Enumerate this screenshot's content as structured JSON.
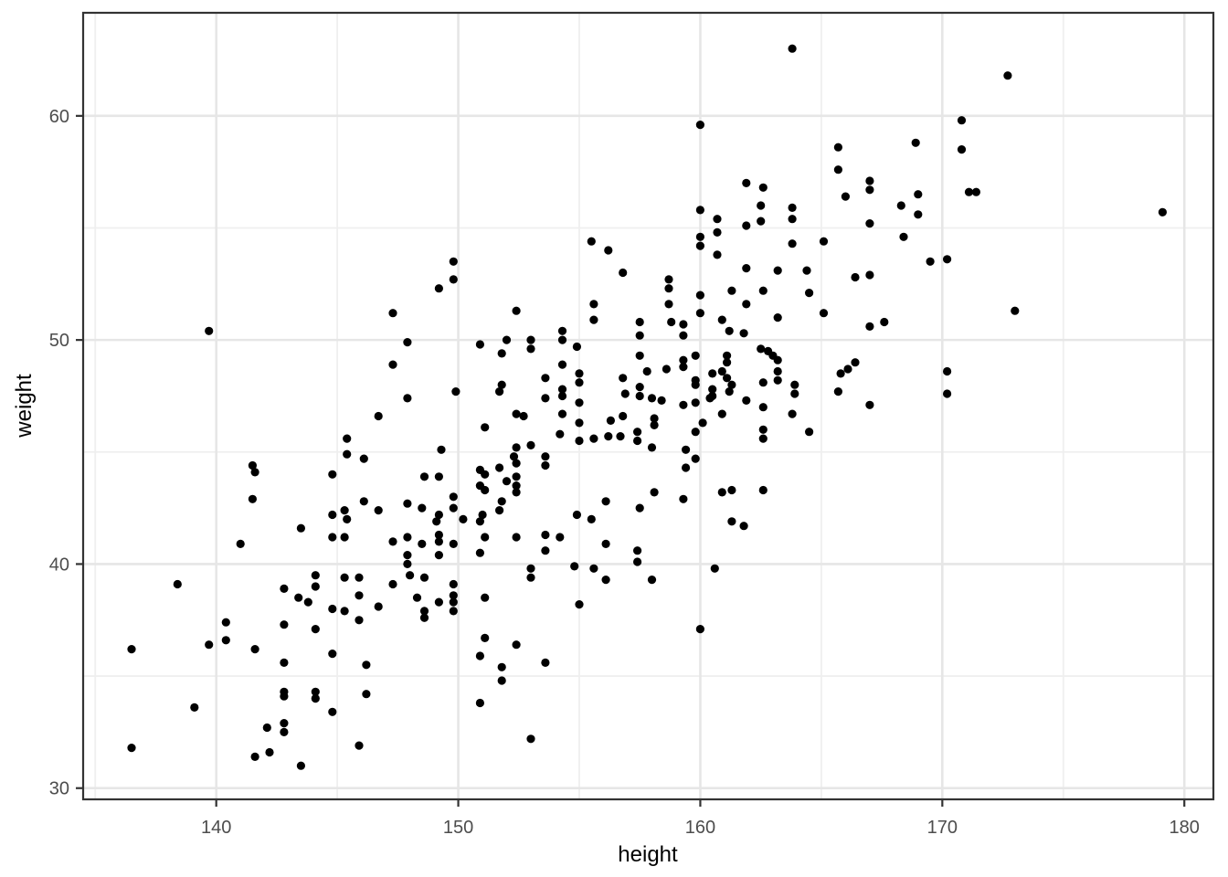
{
  "figure": {
    "xlabel": "height",
    "ylabel": "weight"
  },
  "chart_data": {
    "type": "scatter",
    "title": "",
    "xlabel": "height",
    "ylabel": "weight",
    "xlim": [
      134.5,
      181.2
    ],
    "ylim": [
      29.5,
      64.6
    ],
    "x_major_ticks": [
      140,
      150,
      160,
      170,
      180
    ],
    "x_minor_ticks": [
      135,
      145,
      155,
      165,
      175
    ],
    "y_major_ticks": [
      30,
      40,
      50,
      60
    ],
    "y_minor_ticks": [
      35,
      45,
      55
    ],
    "grid": true,
    "legend_position": "none",
    "style": {
      "point_color": "#000000",
      "point_radius": 4.6,
      "grid_major_color": "#E6E6E6",
      "grid_minor_color": "#EFEFEF",
      "panel_border_color": "#333333",
      "tick_mark_color": "#333333",
      "tick_label_color": "#4D4D4D",
      "axis_title_color": "#000000",
      "panel_background": "#FFFFFF"
    },
    "points": [
      [
        139.7,
        50.4
      ],
      [
        141.5,
        44.4
      ],
      [
        141.6,
        44.1
      ],
      [
        141.5,
        42.9
      ],
      [
        141.0,
        40.9
      ],
      [
        138.4,
        39.1
      ],
      [
        145.4,
        45.6
      ],
      [
        145.4,
        44.9
      ],
      [
        146.1,
        44.7
      ],
      [
        144.8,
        44.0
      ],
      [
        146.1,
        42.8
      ],
      [
        144.8,
        42.2
      ],
      [
        145.3,
        42.4
      ],
      [
        145.4,
        42.0
      ],
      [
        143.5,
        41.6
      ],
      [
        144.8,
        41.2
      ],
      [
        145.3,
        41.2
      ],
      [
        149.8,
        53.5
      ],
      [
        155.5,
        54.4
      ],
      [
        156.2,
        54.0
      ],
      [
        156.8,
        53.0
      ],
      [
        163.8,
        63.0
      ],
      [
        160.0,
        59.6
      ],
      [
        165.7,
        58.6
      ],
      [
        168.9,
        58.8
      ],
      [
        165.7,
        57.6
      ],
      [
        161.9,
        57.0
      ],
      [
        162.6,
        56.8
      ],
      [
        167.0,
        57.1
      ],
      [
        167.0,
        56.7
      ],
      [
        166.0,
        56.4
      ],
      [
        169.0,
        56.5
      ],
      [
        162.5,
        56.0
      ],
      [
        163.8,
        55.9
      ],
      [
        168.3,
        56.0
      ],
      [
        169.0,
        55.6
      ],
      [
        160.0,
        55.8
      ],
      [
        160.7,
        55.4
      ],
      [
        163.8,
        55.4
      ],
      [
        162.5,
        55.3
      ],
      [
        161.9,
        55.1
      ],
      [
        167.0,
        55.2
      ],
      [
        160.0,
        54.6
      ],
      [
        160.0,
        54.2
      ],
      [
        160.7,
        54.8
      ],
      [
        160.7,
        53.8
      ],
      [
        165.1,
        54.4
      ],
      [
        168.4,
        54.6
      ],
      [
        163.8,
        54.3
      ],
      [
        161.9,
        53.2
      ],
      [
        163.2,
        53.1
      ],
      [
        164.4,
        53.1
      ],
      [
        169.5,
        53.5
      ],
      [
        166.4,
        52.8
      ],
      [
        167.0,
        52.9
      ],
      [
        172.7,
        61.8
      ],
      [
        170.8,
        59.8
      ],
      [
        170.8,
        58.5
      ],
      [
        171.1,
        56.6
      ],
      [
        171.4,
        56.6
      ],
      [
        179.1,
        55.7
      ],
      [
        170.2,
        53.6
      ],
      [
        149.8,
        52.7
      ],
      [
        149.2,
        52.3
      ],
      [
        147.3,
        51.2
      ],
      [
        152.4,
        51.3
      ],
      [
        155.6,
        51.6
      ],
      [
        155.6,
        50.9
      ],
      [
        157.5,
        50.8
      ],
      [
        157.5,
        50.2
      ],
      [
        147.9,
        49.9
      ],
      [
        150.9,
        49.8
      ],
      [
        152.0,
        50.0
      ],
      [
        153.0,
        50.0
      ],
      [
        153.0,
        49.6
      ],
      [
        154.3,
        50.4
      ],
      [
        154.3,
        50.0
      ],
      [
        151.8,
        49.4
      ],
      [
        154.9,
        49.7
      ],
      [
        147.3,
        48.9
      ],
      [
        157.5,
        49.3
      ],
      [
        154.3,
        48.9
      ],
      [
        153.6,
        48.3
      ],
      [
        155.0,
        48.5
      ],
      [
        155.0,
        48.1
      ],
      [
        156.8,
        48.3
      ],
      [
        151.8,
        48.0
      ],
      [
        151.7,
        47.7
      ],
      [
        149.9,
        47.7
      ],
      [
        147.9,
        47.4
      ],
      [
        153.6,
        47.4
      ],
      [
        154.3,
        47.8
      ],
      [
        154.3,
        47.5
      ],
      [
        155.0,
        47.2
      ],
      [
        156.9,
        47.6
      ],
      [
        157.5,
        47.9
      ],
      [
        157.5,
        47.5
      ],
      [
        157.8,
        48.6
      ],
      [
        158.0,
        47.4
      ],
      [
        146.7,
        46.6
      ],
      [
        152.4,
        46.7
      ],
      [
        152.7,
        46.6
      ],
      [
        154.3,
        46.7
      ],
      [
        156.3,
        46.4
      ],
      [
        156.8,
        46.6
      ],
      [
        151.1,
        46.1
      ],
      [
        155.0,
        46.3
      ],
      [
        154.2,
        45.8
      ],
      [
        155.0,
        45.5
      ],
      [
        155.6,
        45.6
      ],
      [
        156.2,
        45.7
      ],
      [
        156.7,
        45.7
      ],
      [
        157.4,
        45.9
      ],
      [
        157.4,
        45.5
      ],
      [
        149.3,
        45.1
      ],
      [
        152.4,
        45.2
      ],
      [
        153.0,
        45.3
      ],
      [
        152.3,
        44.8
      ],
      [
        152.4,
        44.5
      ],
      [
        153.6,
        44.8
      ],
      [
        153.6,
        44.4
      ],
      [
        148.6,
        43.9
      ],
      [
        149.2,
        43.9
      ],
      [
        150.9,
        44.2
      ],
      [
        150.9,
        43.5
      ],
      [
        151.1,
        44.0
      ],
      [
        151.1,
        43.3
      ],
      [
        151.7,
        44.3
      ],
      [
        152.0,
        43.7
      ],
      [
        152.4,
        43.9
      ],
      [
        152.4,
        43.5
      ],
      [
        152.4,
        43.2
      ],
      [
        151.8,
        42.8
      ],
      [
        151.7,
        42.4
      ],
      [
        149.8,
        43.0
      ],
      [
        149.8,
        42.5
      ],
      [
        150.2,
        42.0
      ],
      [
        150.9,
        41.9
      ],
      [
        149.2,
        42.2
      ],
      [
        149.1,
        41.9
      ],
      [
        147.9,
        42.7
      ],
      [
        146.7,
        42.4
      ],
      [
        148.5,
        42.5
      ],
      [
        151.0,
        42.2
      ],
      [
        154.9,
        42.2
      ],
      [
        155.5,
        42.0
      ],
      [
        156.1,
        42.8
      ],
      [
        157.5,
        42.5
      ],
      [
        147.9,
        41.2
      ],
      [
        149.2,
        41.3
      ],
      [
        149.2,
        41.0
      ],
      [
        147.3,
        41.0
      ],
      [
        151.1,
        41.2
      ],
      [
        152.4,
        41.2
      ],
      [
        153.6,
        41.3
      ],
      [
        154.2,
        41.2
      ],
      [
        148.5,
        40.9
      ],
      [
        158.7,
        52.7
      ],
      [
        158.7,
        52.3
      ],
      [
        161.3,
        52.2
      ],
      [
        162.6,
        52.2
      ],
      [
        164.5,
        52.1
      ],
      [
        160.0,
        52.0
      ],
      [
        158.7,
        51.6
      ],
      [
        161.9,
        51.6
      ],
      [
        160.0,
        51.2
      ],
      [
        165.1,
        51.2
      ],
      [
        163.2,
        51.0
      ],
      [
        158.8,
        50.8
      ],
      [
        159.3,
        50.7
      ],
      [
        160.9,
        50.9
      ],
      [
        167.0,
        50.6
      ],
      [
        167.6,
        50.8
      ],
      [
        161.2,
        50.4
      ],
      [
        159.3,
        50.2
      ],
      [
        161.8,
        50.3
      ],
      [
        162.5,
        49.6
      ],
      [
        162.8,
        49.5
      ],
      [
        161.1,
        49.3
      ],
      [
        161.1,
        49.0
      ],
      [
        163.0,
        49.3
      ],
      [
        163.2,
        49.1
      ],
      [
        159.3,
        49.1
      ],
      [
        159.3,
        48.8
      ],
      [
        159.8,
        49.3
      ],
      [
        158.6,
        48.7
      ],
      [
        163.2,
        48.6
      ],
      [
        163.2,
        48.2
      ],
      [
        160.5,
        48.5
      ],
      [
        160.9,
        48.6
      ],
      [
        161.1,
        48.3
      ],
      [
        161.3,
        48.0
      ],
      [
        159.8,
        48.2
      ],
      [
        159.8,
        48.0
      ],
      [
        160.5,
        47.8
      ],
      [
        160.5,
        47.5
      ],
      [
        161.2,
        47.7
      ],
      [
        162.6,
        48.1
      ],
      [
        163.9,
        48.0
      ],
      [
        163.9,
        47.6
      ],
      [
        165.8,
        48.5
      ],
      [
        166.1,
        48.7
      ],
      [
        166.4,
        49.0
      ],
      [
        165.7,
        47.7
      ],
      [
        158.4,
        47.3
      ],
      [
        159.3,
        47.1
      ],
      [
        159.8,
        47.2
      ],
      [
        160.4,
        47.4
      ],
      [
        161.9,
        47.3
      ],
      [
        162.6,
        47.0
      ],
      [
        167.0,
        47.1
      ],
      [
        160.9,
        46.7
      ],
      [
        158.1,
        46.5
      ],
      [
        158.1,
        46.2
      ],
      [
        160.1,
        46.3
      ],
      [
        163.8,
        46.7
      ],
      [
        159.8,
        45.9
      ],
      [
        162.6,
        46.0
      ],
      [
        162.6,
        45.6
      ],
      [
        164.5,
        45.9
      ],
      [
        158.0,
        45.2
      ],
      [
        159.4,
        45.1
      ],
      [
        159.4,
        44.3
      ],
      [
        159.8,
        44.7
      ],
      [
        158.1,
        43.2
      ],
      [
        159.3,
        42.9
      ],
      [
        160.9,
        43.2
      ],
      [
        161.3,
        43.3
      ],
      [
        162.6,
        43.3
      ],
      [
        161.3,
        41.9
      ],
      [
        161.8,
        41.7
      ],
      [
        173.0,
        51.3
      ],
      [
        170.2,
        48.6
      ],
      [
        170.2,
        47.6
      ],
      [
        136.5,
        36.2
      ],
      [
        136.5,
        31.8
      ],
      [
        139.1,
        33.6
      ],
      [
        140.4,
        37.4
      ],
      [
        139.7,
        36.4
      ],
      [
        140.4,
        36.6
      ],
      [
        141.6,
        36.2
      ],
      [
        142.8,
        38.9
      ],
      [
        143.4,
        38.5
      ],
      [
        143.8,
        38.3
      ],
      [
        144.1,
        39.5
      ],
      [
        144.1,
        39.0
      ],
      [
        144.8,
        38.0
      ],
      [
        145.3,
        39.4
      ],
      [
        145.9,
        39.4
      ],
      [
        145.3,
        37.9
      ],
      [
        145.9,
        38.6
      ],
      [
        145.9,
        37.5
      ],
      [
        142.8,
        37.3
      ],
      [
        144.1,
        37.1
      ],
      [
        144.8,
        36.0
      ],
      [
        142.8,
        35.6
      ],
      [
        146.2,
        35.5
      ],
      [
        142.8,
        34.3
      ],
      [
        142.8,
        34.1
      ],
      [
        144.1,
        34.3
      ],
      [
        144.1,
        34.0
      ],
      [
        144.8,
        33.4
      ],
      [
        142.1,
        32.7
      ],
      [
        142.8,
        32.9
      ],
      [
        142.8,
        32.5
      ],
      [
        145.9,
        31.9
      ],
      [
        141.6,
        31.4
      ],
      [
        142.2,
        31.6
      ],
      [
        143.5,
        31.0
      ],
      [
        146.2,
        34.2
      ],
      [
        149.2,
        40.4
      ],
      [
        149.8,
        40.9
      ],
      [
        150.9,
        40.5
      ],
      [
        153.6,
        40.6
      ],
      [
        156.1,
        40.9
      ],
      [
        157.4,
        40.6
      ],
      [
        157.4,
        40.1
      ],
      [
        158.0,
        39.3
      ],
      [
        147.3,
        39.1
      ],
      [
        146.7,
        38.1
      ],
      [
        147.9,
        40.4
      ],
      [
        147.9,
        40.0
      ],
      [
        148.0,
        39.5
      ],
      [
        148.6,
        39.4
      ],
      [
        148.3,
        38.5
      ],
      [
        148.6,
        37.9
      ],
      [
        148.6,
        37.6
      ],
      [
        149.2,
        38.3
      ],
      [
        149.8,
        39.1
      ],
      [
        149.8,
        38.6
      ],
      [
        149.8,
        38.3
      ],
      [
        149.8,
        37.9
      ],
      [
        151.1,
        38.5
      ],
      [
        151.1,
        36.7
      ],
      [
        150.9,
        35.9
      ],
      [
        151.8,
        35.4
      ],
      [
        151.8,
        34.8
      ],
      [
        152.4,
        36.4
      ],
      [
        153.0,
        39.8
      ],
      [
        153.0,
        39.4
      ],
      [
        153.6,
        35.6
      ],
      [
        154.8,
        39.9
      ],
      [
        155.0,
        38.2
      ],
      [
        155.6,
        39.8
      ],
      [
        156.1,
        39.3
      ],
      [
        150.9,
        33.8
      ],
      [
        153.0,
        32.2
      ],
      [
        160.6,
        39.8
      ],
      [
        160.0,
        37.1
      ]
    ]
  }
}
